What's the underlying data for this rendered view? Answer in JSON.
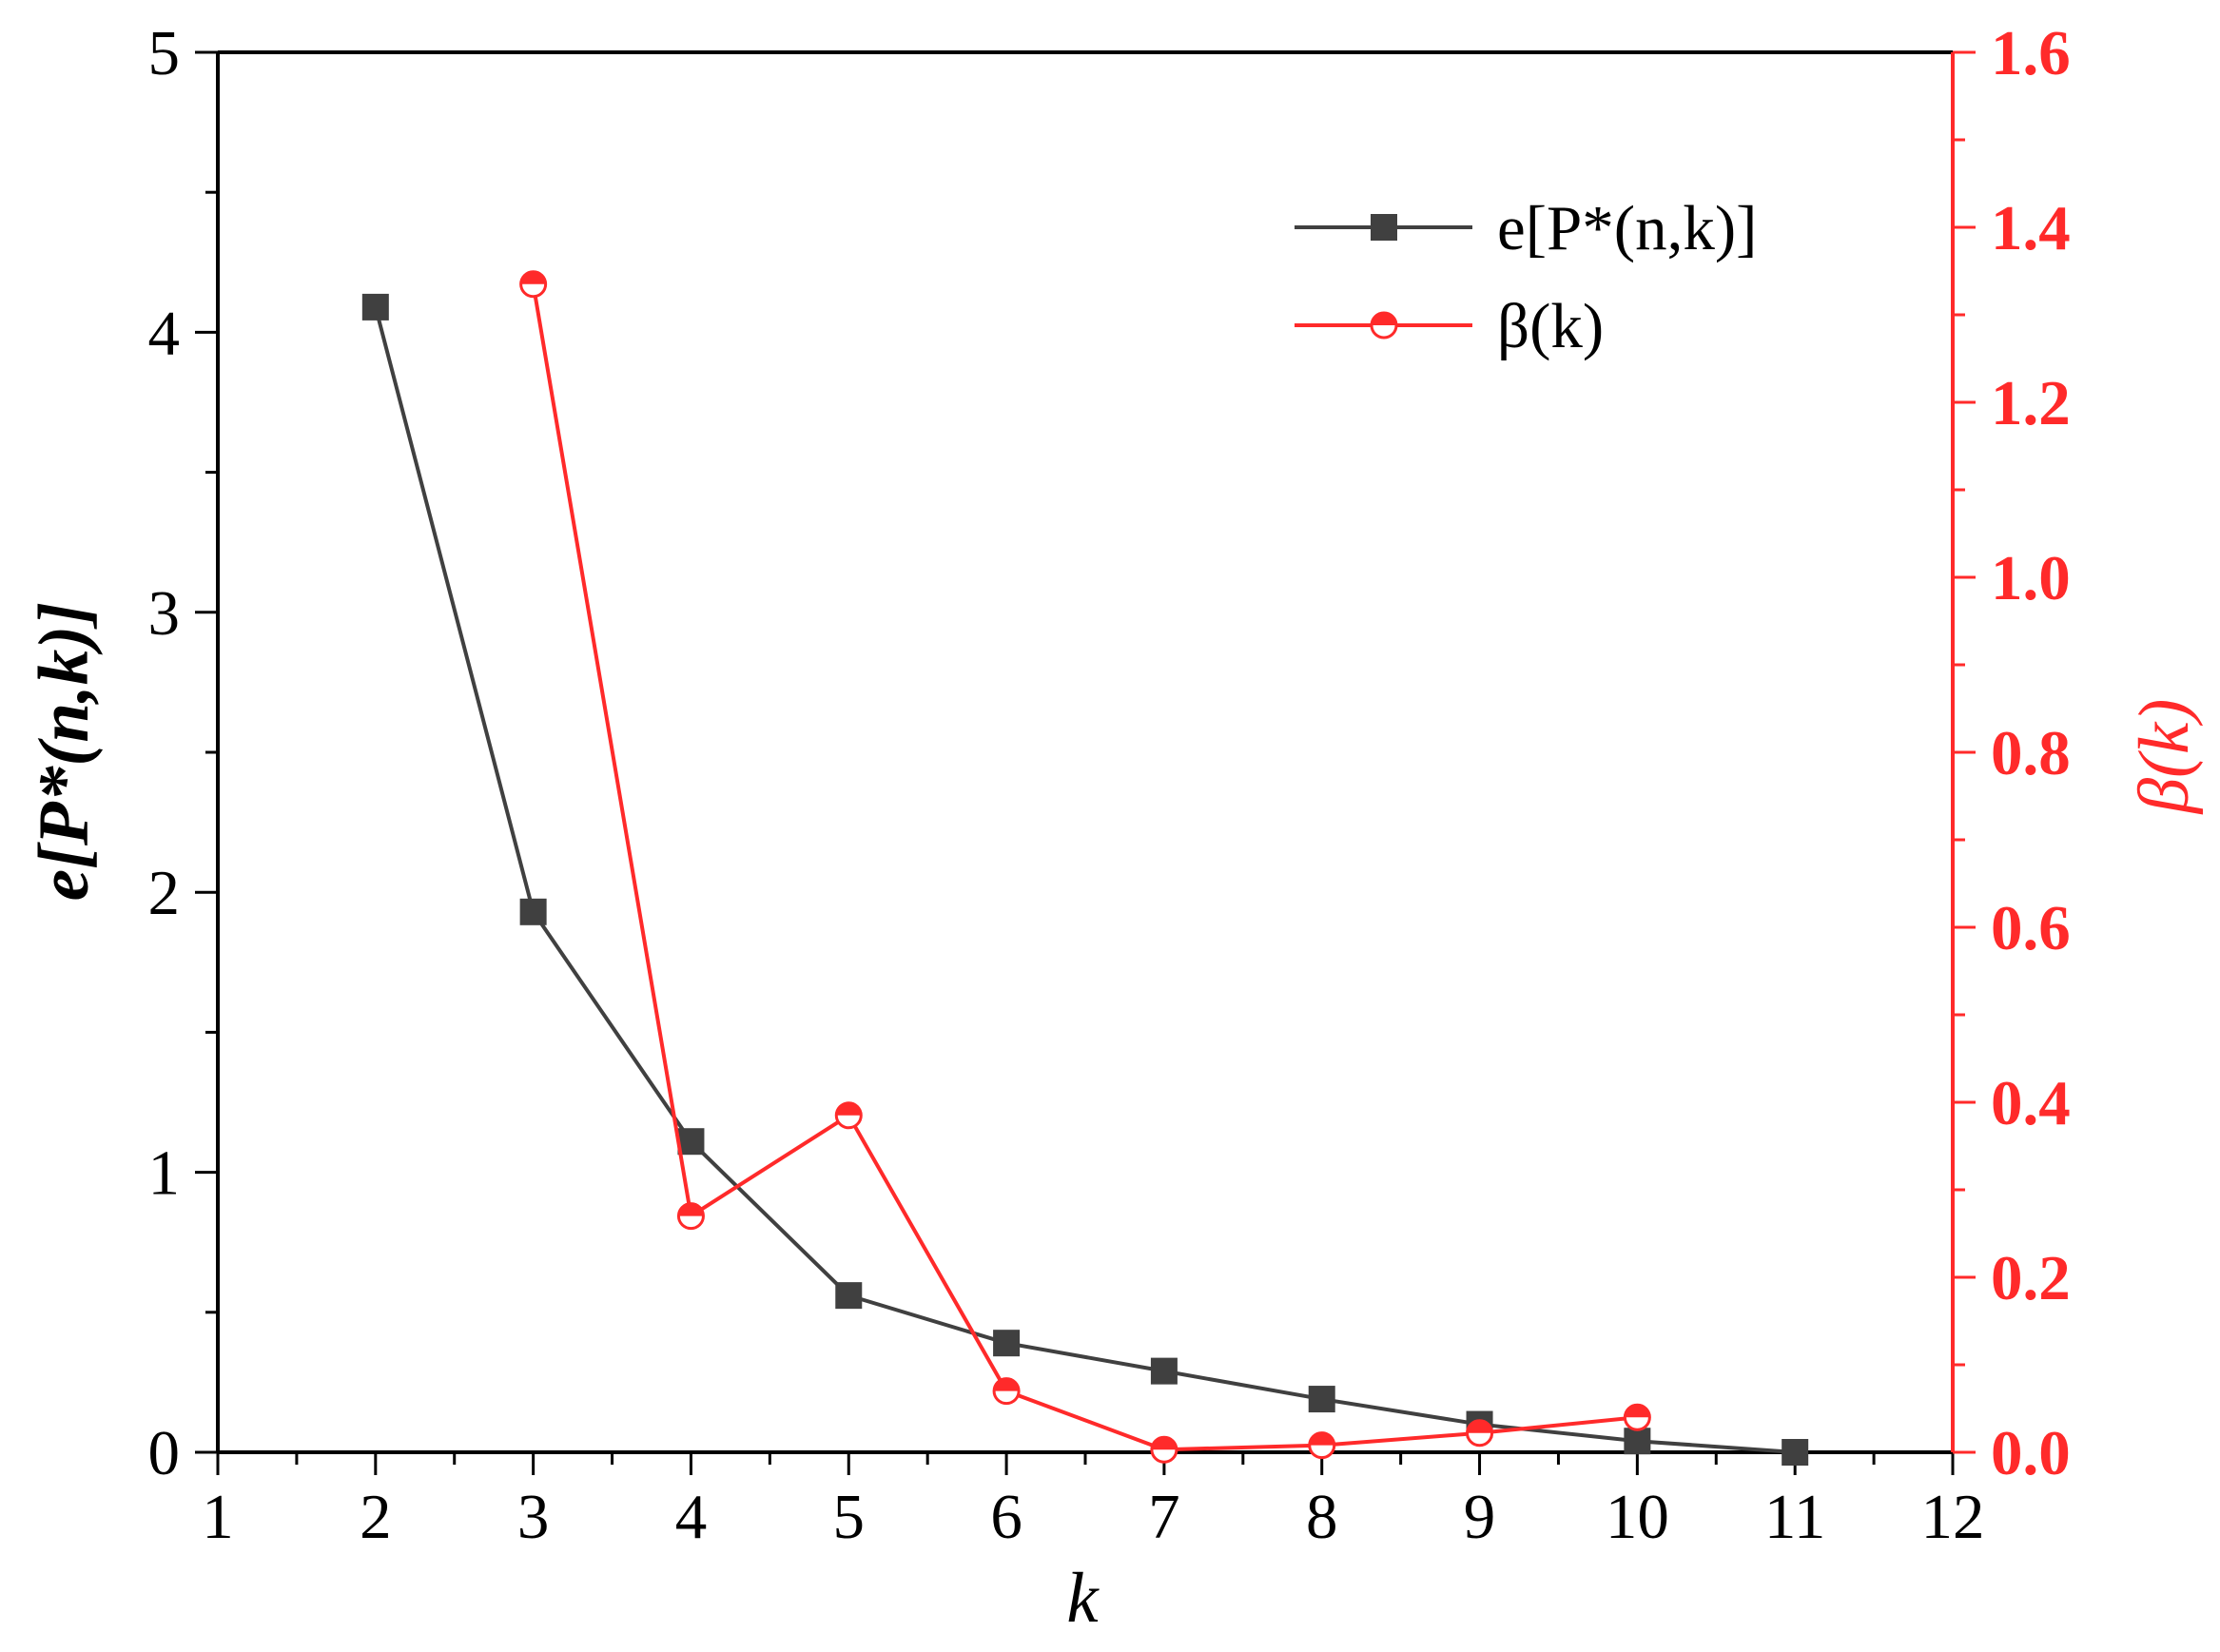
{
  "chart_data": {
    "type": "line",
    "xlabel": "k",
    "ylabel_left": "e[P*(n,k)]",
    "ylabel_right": "β(k)",
    "xlim": [
      1,
      12
    ],
    "ylim_left": [
      0,
      5
    ],
    "ylim_right": [
      0,
      1.6
    ],
    "xticks": [
      "1",
      "2",
      "3",
      "4",
      "5",
      "6",
      "7",
      "8",
      "9",
      "10",
      "11",
      "12"
    ],
    "yticks_left": [
      "0",
      "1",
      "2",
      "3",
      "4",
      "5"
    ],
    "yticks_right": [
      "0.0",
      "0.2",
      "0.4",
      "0.6",
      "0.8",
      "1.0",
      "1.2",
      "1.4",
      "1.6"
    ],
    "legend_position": "top-right",
    "grid": false,
    "series": [
      {
        "name": "e[P*(n,k)]",
        "axis": "left",
        "color": "#404040",
        "marker": "square",
        "x": [
          2,
          3,
          4,
          5,
          6,
          7,
          8,
          9,
          10,
          11
        ],
        "y": [
          4.09,
          1.93,
          1.11,
          0.56,
          0.39,
          0.29,
          0.19,
          0.1,
          0.04,
          0.0
        ]
      },
      {
        "name": "β(k)",
        "axis": "right",
        "color": "#ff2a2a",
        "marker": "half-circle",
        "x": [
          3,
          4,
          5,
          6,
          7,
          8,
          9,
          10
        ],
        "y": [
          1.335,
          0.27,
          0.385,
          0.07,
          0.003,
          0.008,
          0.022,
          0.04
        ]
      }
    ]
  }
}
